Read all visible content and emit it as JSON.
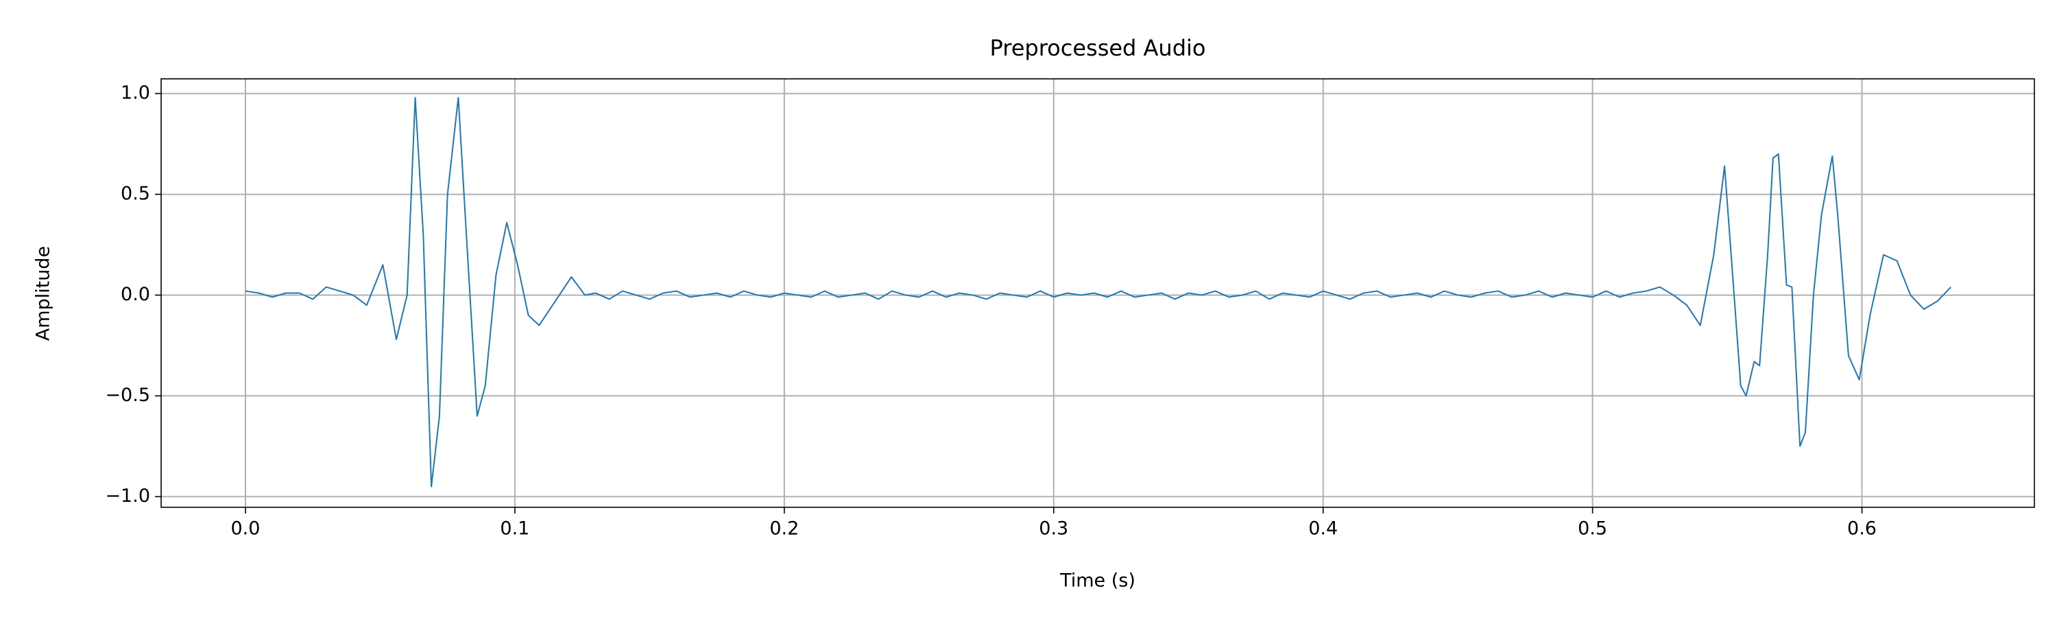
{
  "chart_data": {
    "type": "line",
    "title": "Preprocessed Audio",
    "x_label": "Time (s)",
    "y_label": "Amplitude",
    "x": [
      0.0,
      0.005,
      0.01,
      0.015,
      0.02,
      0.025,
      0.03,
      0.035,
      0.04,
      0.045,
      0.051,
      0.056,
      0.06,
      0.063,
      0.066,
      0.069,
      0.072,
      0.075,
      0.079,
      0.082,
      0.086,
      0.089,
      0.093,
      0.097,
      0.101,
      0.105,
      0.109,
      0.114,
      0.121,
      0.126,
      0.13,
      0.135,
      0.14,
      0.145,
      0.15,
      0.155,
      0.16,
      0.165,
      0.17,
      0.175,
      0.18,
      0.185,
      0.19,
      0.195,
      0.2,
      0.205,
      0.21,
      0.215,
      0.22,
      0.225,
      0.23,
      0.235,
      0.24,
      0.245,
      0.25,
      0.255,
      0.26,
      0.265,
      0.27,
      0.275,
      0.28,
      0.285,
      0.29,
      0.295,
      0.3,
      0.305,
      0.31,
      0.315,
      0.32,
      0.325,
      0.33,
      0.335,
      0.34,
      0.345,
      0.35,
      0.355,
      0.36,
      0.365,
      0.37,
      0.375,
      0.38,
      0.385,
      0.39,
      0.395,
      0.4,
      0.405,
      0.41,
      0.415,
      0.42,
      0.425,
      0.43,
      0.435,
      0.44,
      0.445,
      0.45,
      0.455,
      0.46,
      0.465,
      0.47,
      0.475,
      0.48,
      0.485,
      0.49,
      0.495,
      0.5,
      0.505,
      0.51,
      0.515,
      0.52,
      0.525,
      0.53,
      0.535,
      0.54,
      0.545,
      0.549,
      0.552,
      0.555,
      0.557,
      0.56,
      0.562,
      0.565,
      0.567,
      0.569,
      0.572,
      0.574,
      0.577,
      0.579,
      0.582,
      0.585,
      0.589,
      0.591,
      0.595,
      0.599,
      0.603,
      0.608,
      0.613,
      0.618,
      0.623,
      0.628,
      0.633
    ],
    "series": [
      {
        "name": "Amplitude",
        "color": "#1f77b4",
        "values": [
          0.02,
          0.01,
          -0.01,
          0.01,
          0.01,
          -0.02,
          0.04,
          0.02,
          0.0,
          -0.05,
          0.15,
          -0.22,
          0.0,
          0.98,
          0.3,
          -0.95,
          -0.6,
          0.5,
          0.98,
          0.3,
          -0.6,
          -0.45,
          0.1,
          0.36,
          0.15,
          -0.1,
          -0.15,
          -0.05,
          0.09,
          0.0,
          0.01,
          -0.02,
          0.02,
          0.0,
          -0.02,
          0.01,
          0.02,
          -0.01,
          0.0,
          0.01,
          -0.01,
          0.02,
          0.0,
          -0.01,
          0.01,
          0.0,
          -0.01,
          0.02,
          -0.01,
          0.0,
          0.01,
          -0.02,
          0.02,
          0.0,
          -0.01,
          0.02,
          -0.01,
          0.01,
          0.0,
          -0.02,
          0.01,
          0.0,
          -0.01,
          0.02,
          -0.01,
          0.01,
          0.0,
          0.01,
          -0.01,
          0.02,
          -0.01,
          0.0,
          0.01,
          -0.02,
          0.01,
          0.0,
          0.02,
          -0.01,
          0.0,
          0.02,
          -0.02,
          0.01,
          0.0,
          -0.01,
          0.02,
          0.0,
          -0.02,
          0.01,
          0.02,
          -0.01,
          0.0,
          0.01,
          -0.01,
          0.02,
          0.0,
          -0.01,
          0.01,
          0.02,
          -0.01,
          0.0,
          0.02,
          -0.01,
          0.01,
          0.0,
          -0.01,
          0.02,
          -0.01,
          0.01,
          0.02,
          0.04,
          0.0,
          -0.05,
          -0.15,
          0.2,
          0.64,
          0.1,
          -0.45,
          -0.5,
          -0.33,
          -0.35,
          0.2,
          0.68,
          0.7,
          0.05,
          0.04,
          -0.75,
          -0.68,
          0.0,
          0.4,
          0.69,
          0.4,
          -0.3,
          -0.42,
          -0.1,
          0.2,
          0.17,
          0.0,
          -0.07,
          -0.03,
          0.04
        ]
      }
    ],
    "xlim": [
      -0.0313,
      0.664
    ],
    "ylim": [
      -1.053,
      1.073
    ],
    "xticks": [
      {
        "value": 0,
        "label": "0.0"
      },
      0.1,
      0.2,
      0.3,
      0.4,
      0.5,
      0.6
    ],
    "yticks": [
      {
        "value": -1.0,
        "label": "−1.0"
      },
      {
        "value": -0.5,
        "label": "−0.5"
      },
      {
        "value": 0,
        "label": "0.0"
      },
      0.5,
      {
        "value": 1.0,
        "label": "1.0"
      }
    ],
    "grid": true
  }
}
